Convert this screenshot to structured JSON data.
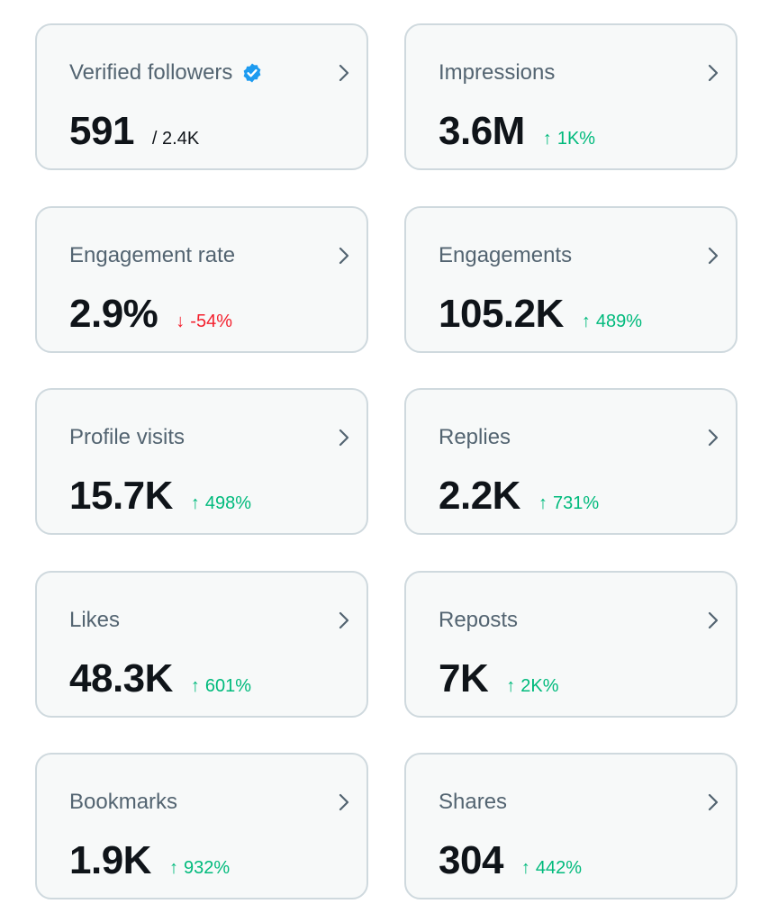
{
  "colors": {
    "card_background": "#f7f9f9",
    "card_border": "#cfd9de",
    "title": "#536471",
    "value": "#0f1419",
    "positive": "#00ba7c",
    "negative": "#f4212e",
    "verified": "#1d9bf0"
  },
  "metrics": [
    {
      "title": "Verified followers",
      "value": "591",
      "denominator": "/ 2.4K",
      "icon": "verified-badge-icon"
    },
    {
      "title": "Impressions",
      "value": "3.6M",
      "change": "1K%",
      "direction": "up",
      "arrow": "↑"
    },
    {
      "title": "Engagement rate",
      "value": "2.9%",
      "change": "-54%",
      "direction": "down",
      "arrow": "↓"
    },
    {
      "title": "Engagements",
      "value": "105.2K",
      "change": "489%",
      "direction": "up",
      "arrow": "↑"
    },
    {
      "title": "Profile visits",
      "value": "15.7K",
      "change": "498%",
      "direction": "up",
      "arrow": "↑"
    },
    {
      "title": "Replies",
      "value": "2.2K",
      "change": "731%",
      "direction": "up",
      "arrow": "↑"
    },
    {
      "title": "Likes",
      "value": "48.3K",
      "change": "601%",
      "direction": "up",
      "arrow": "↑"
    },
    {
      "title": "Reposts",
      "value": "7K",
      "change": "2K%",
      "direction": "up",
      "arrow": "↑"
    },
    {
      "title": "Bookmarks",
      "value": "1.9K",
      "change": "932%",
      "direction": "up",
      "arrow": "↑"
    },
    {
      "title": "Shares",
      "value": "304",
      "change": "442%",
      "direction": "up",
      "arrow": "↑"
    }
  ]
}
